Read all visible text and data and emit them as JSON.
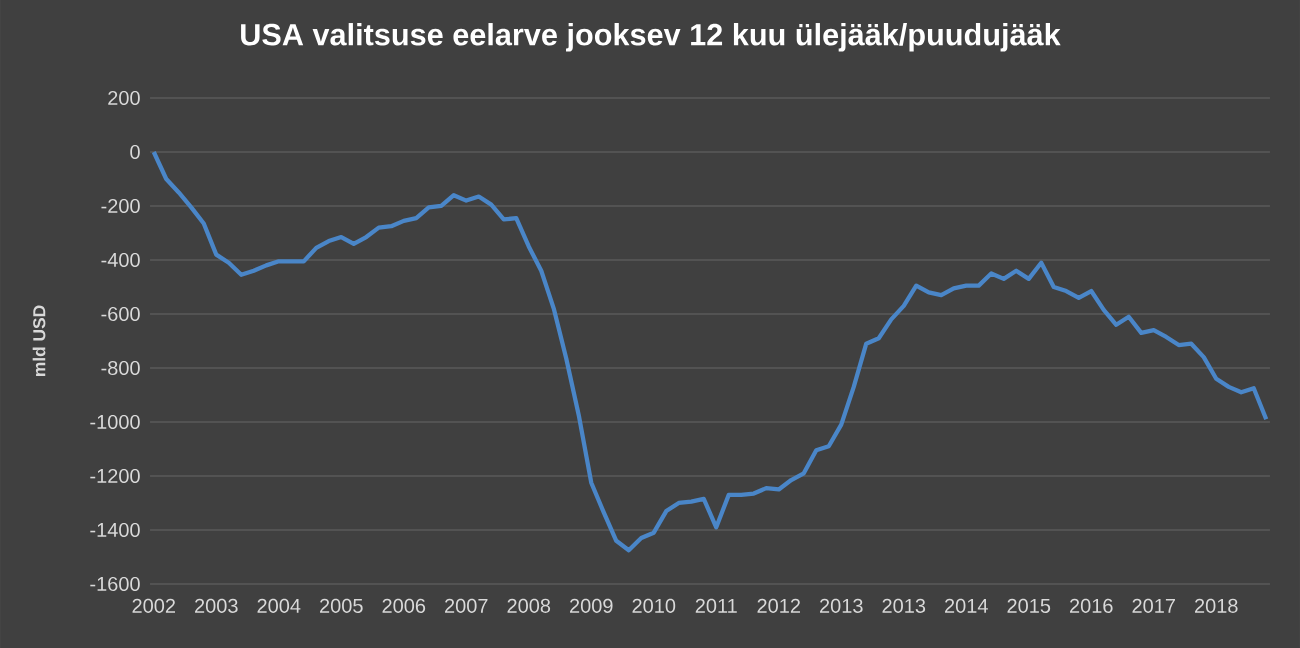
{
  "chart_data": {
    "type": "line",
    "title": "USA valitsuse eelarve jooksev 12 kuu ülejääk/puudujääk",
    "ylabel": "mld USD",
    "categories": [
      "2002",
      null,
      null,
      null,
      null,
      "2003",
      null,
      null,
      null,
      null,
      "2004",
      null,
      null,
      null,
      null,
      "2005",
      null,
      null,
      null,
      null,
      "2006",
      null,
      null,
      null,
      null,
      "2007",
      null,
      null,
      null,
      null,
      "2008",
      null,
      null,
      null,
      null,
      "2009",
      null,
      null,
      null,
      null,
      "2010",
      null,
      null,
      null,
      null,
      "2011",
      null,
      null,
      null,
      null,
      "2012",
      null,
      null,
      null,
      null,
      "2013",
      null,
      null,
      null,
      null,
      "2013",
      null,
      null,
      null,
      null,
      "2014",
      null,
      null,
      null,
      null,
      "2015",
      null,
      null,
      null,
      null,
      "2016",
      null,
      null,
      null,
      null,
      "2017",
      null,
      null,
      null,
      null,
      "2018",
      null,
      null,
      null,
      null
    ],
    "series": [
      {
        "color": "#4a86c8",
        "values": [
          0,
          -100,
          -150,
          -205,
          -265,
          -380,
          -410,
          -455,
          -440,
          -420,
          -405,
          -405,
          -405,
          -355,
          -330,
          -315,
          -340,
          -315,
          -280,
          -275,
          -255,
          -245,
          -205,
          -200,
          -160,
          -180,
          -165,
          -195,
          -250,
          -245,
          -350,
          -440,
          -580,
          -765,
          -975,
          -1225,
          -1335,
          -1440,
          -1475,
          -1430,
          -1410,
          -1330,
          -1300,
          -1295,
          -1285,
          -1390,
          -1270,
          -1270,
          -1265,
          -1245,
          -1250,
          -1215,
          -1190,
          -1105,
          -1090,
          -1010,
          -870,
          -710,
          -690,
          -620,
          -570,
          -495,
          -520,
          -530,
          -505,
          -495,
          -495,
          -450,
          -470,
          -440,
          -470,
          -410,
          -500,
          -515,
          -540,
          -515,
          -585,
          -640,
          -610,
          -670,
          -660,
          -685,
          -715,
          -710,
          -760,
          -840,
          -870,
          -890,
          -875,
          -990
        ]
      }
    ],
    "ylim": [
      -1600,
      200
    ],
    "yticks": [
      -1600,
      -1400,
      -1200,
      -1000,
      -800,
      -600,
      -400,
      -200,
      0,
      200
    ],
    "grid": "y"
  }
}
